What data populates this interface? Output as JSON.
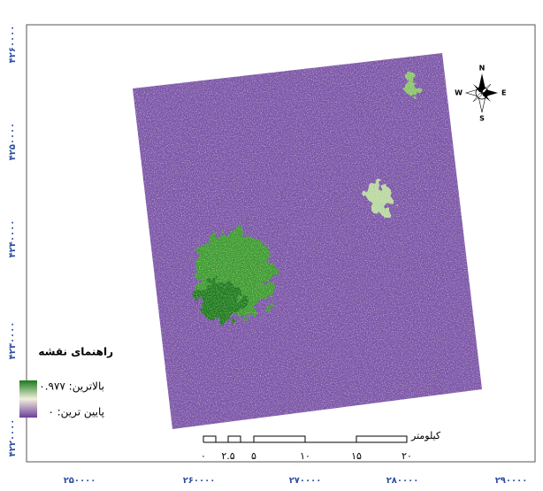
{
  "y_axis_labels": [
    "۴۲۶۰۰۰۰",
    "۴۲۵۰۰۰۰",
    "۴۲۴۰۰۰۰",
    "۴۲۳۰۰۰۰",
    "۴۲۲۰۰۰۰"
  ],
  "x_axis_labels": [
    "۲۵۰۰۰۰",
    "۲۶۰۰۰۰",
    "۲۷۰۰۰۰",
    "۲۸۰۰۰۰",
    "۲۹۰۰۰۰"
  ],
  "legend": {
    "title": "راهنمای نقشه",
    "high": "بالاترین: ۰.۹۷۷",
    "low": "پایین ترین: ۰"
  },
  "scale_bar": {
    "unit": "کیلومتر",
    "ticks": [
      "۰",
      "۲.۵",
      "۵",
      "۱۰",
      "۱۵",
      "۲۰"
    ]
  },
  "compass": {
    "n": "N",
    "s": "S",
    "e": "E",
    "w": "W"
  }
}
